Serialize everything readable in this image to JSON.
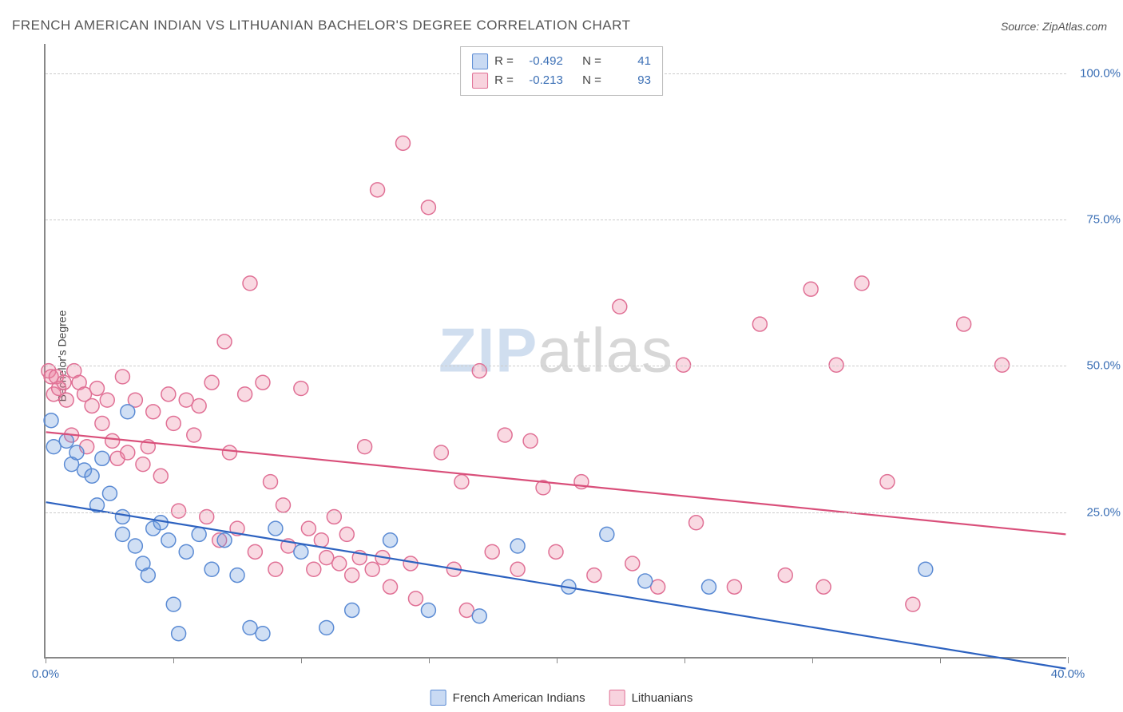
{
  "title": "FRENCH AMERICAN INDIAN VS LITHUANIAN BACHELOR'S DEGREE CORRELATION CHART",
  "source": "Source: ZipAtlas.com",
  "y_axis_label": "Bachelor's Degree",
  "watermark": {
    "zip": "ZIP",
    "atlas": "atlas"
  },
  "chart": {
    "type": "scatter",
    "xlim": [
      0,
      40
    ],
    "ylim": [
      0,
      105
    ],
    "x_ticks": [
      0,
      5,
      10,
      15,
      20,
      25,
      30,
      35,
      40
    ],
    "x_tick_labels": [
      "0.0%",
      "",
      "",
      "",
      "",
      "",
      "",
      "",
      "40.0%"
    ],
    "y_ticks": [
      25,
      50,
      75,
      100
    ],
    "y_tick_labels": [
      "25.0%",
      "50.0%",
      "75.0%",
      "100.0%"
    ],
    "grid_color": "#cccccc",
    "background_color": "#ffffff",
    "point_radius": 9,
    "point_stroke_width": 1.5,
    "line_width": 2.2,
    "series": [
      {
        "key": "blue",
        "label": "French American Indians",
        "fill": "rgba(100,150,220,0.30)",
        "stroke": "#5b8bd4",
        "line_color": "#2d62c0",
        "R": "-0.492",
        "N": "41",
        "trend": {
          "x1": 0,
          "y1": 26.5,
          "x2": 40,
          "y2": -2.0
        },
        "points": [
          [
            0.2,
            40.5
          ],
          [
            0.3,
            36
          ],
          [
            0.8,
            37
          ],
          [
            1.0,
            33
          ],
          [
            1.2,
            35
          ],
          [
            1.5,
            32
          ],
          [
            1.8,
            31
          ],
          [
            2.0,
            26
          ],
          [
            2.2,
            34
          ],
          [
            2.5,
            28
          ],
          [
            3.0,
            21
          ],
          [
            3.0,
            24
          ],
          [
            3.2,
            42
          ],
          [
            3.5,
            19
          ],
          [
            3.8,
            16
          ],
          [
            4.0,
            14
          ],
          [
            4.2,
            22
          ],
          [
            4.5,
            23
          ],
          [
            4.8,
            20
          ],
          [
            5.0,
            9
          ],
          [
            5.2,
            4
          ],
          [
            5.5,
            18
          ],
          [
            6.0,
            21
          ],
          [
            6.5,
            15
          ],
          [
            7.0,
            20
          ],
          [
            7.5,
            14
          ],
          [
            8.0,
            5
          ],
          [
            8.5,
            4
          ],
          [
            9.0,
            22
          ],
          [
            10.0,
            18
          ],
          [
            11.0,
            5
          ],
          [
            12.0,
            8
          ],
          [
            13.5,
            20
          ],
          [
            15.0,
            8
          ],
          [
            17.0,
            7
          ],
          [
            18.5,
            19
          ],
          [
            20.5,
            12
          ],
          [
            22.0,
            21
          ],
          [
            23.5,
            13
          ],
          [
            26.0,
            12
          ],
          [
            34.5,
            15
          ]
        ]
      },
      {
        "key": "pink",
        "label": "Lithuanians",
        "fill": "rgba(235,130,160,0.30)",
        "stroke": "#e07095",
        "line_color": "#d94f7a",
        "R": "-0.213",
        "N": "93",
        "trend": {
          "x1": 0,
          "y1": 38.5,
          "x2": 40,
          "y2": 21.0
        },
        "points": [
          [
            0.1,
            49
          ],
          [
            0.2,
            48
          ],
          [
            0.3,
            45
          ],
          [
            0.4,
            48
          ],
          [
            0.5,
            46
          ],
          [
            0.7,
            47
          ],
          [
            0.8,
            44
          ],
          [
            1.0,
            38
          ],
          [
            1.1,
            49
          ],
          [
            1.3,
            47
          ],
          [
            1.5,
            45
          ],
          [
            1.6,
            36
          ],
          [
            1.8,
            43
          ],
          [
            2.0,
            46
          ],
          [
            2.2,
            40
          ],
          [
            2.4,
            44
          ],
          [
            2.6,
            37
          ],
          [
            2.8,
            34
          ],
          [
            3.0,
            48
          ],
          [
            3.2,
            35
          ],
          [
            3.5,
            44
          ],
          [
            3.8,
            33
          ],
          [
            4.0,
            36
          ],
          [
            4.2,
            42
          ],
          [
            4.5,
            31
          ],
          [
            4.8,
            45
          ],
          [
            5.0,
            40
          ],
          [
            5.2,
            25
          ],
          [
            5.5,
            44
          ],
          [
            5.8,
            38
          ],
          [
            6.0,
            43
          ],
          [
            6.3,
            24
          ],
          [
            6.5,
            47
          ],
          [
            6.8,
            20
          ],
          [
            7.0,
            54
          ],
          [
            7.2,
            35
          ],
          [
            7.5,
            22
          ],
          [
            7.8,
            45
          ],
          [
            8.0,
            64
          ],
          [
            8.2,
            18
          ],
          [
            8.5,
            47
          ],
          [
            8.8,
            30
          ],
          [
            9.0,
            15
          ],
          [
            9.3,
            26
          ],
          [
            9.5,
            19
          ],
          [
            10.0,
            46
          ],
          [
            10.3,
            22
          ],
          [
            10.5,
            15
          ],
          [
            10.8,
            20
          ],
          [
            11.0,
            17
          ],
          [
            11.3,
            24
          ],
          [
            11.5,
            16
          ],
          [
            11.8,
            21
          ],
          [
            12.0,
            14
          ],
          [
            12.3,
            17
          ],
          [
            12.5,
            36
          ],
          [
            12.8,
            15
          ],
          [
            13.0,
            80
          ],
          [
            13.2,
            17
          ],
          [
            13.5,
            12
          ],
          [
            14.0,
            88
          ],
          [
            14.3,
            16
          ],
          [
            14.5,
            10
          ],
          [
            15.0,
            77
          ],
          [
            15.5,
            35
          ],
          [
            16.0,
            15
          ],
          [
            16.3,
            30
          ],
          [
            16.5,
            8
          ],
          [
            17.0,
            49
          ],
          [
            17.5,
            18
          ],
          [
            18.0,
            38
          ],
          [
            18.5,
            15
          ],
          [
            19.0,
            37
          ],
          [
            19.5,
            29
          ],
          [
            20.0,
            18
          ],
          [
            21.0,
            30
          ],
          [
            21.5,
            14
          ],
          [
            22.5,
            60
          ],
          [
            23.0,
            16
          ],
          [
            24.0,
            12
          ],
          [
            25.0,
            50
          ],
          [
            25.5,
            23
          ],
          [
            27.0,
            12
          ],
          [
            28.0,
            57
          ],
          [
            29.0,
            14
          ],
          [
            30.0,
            63
          ],
          [
            30.5,
            12
          ],
          [
            31.0,
            50
          ],
          [
            32.0,
            64
          ],
          [
            33.0,
            30
          ],
          [
            34.0,
            9
          ],
          [
            36.0,
            57
          ],
          [
            37.5,
            50
          ]
        ]
      }
    ]
  },
  "stats_box": {
    "r_label": "R =",
    "n_label": "N ="
  },
  "legend": {
    "items": [
      "French American Indians",
      "Lithuanians"
    ]
  }
}
